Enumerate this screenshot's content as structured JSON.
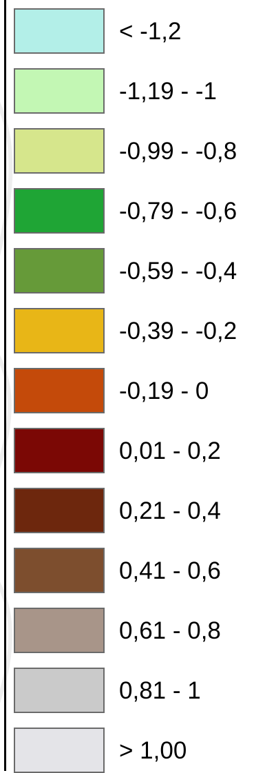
{
  "legend": {
    "items": [
      {
        "label": "< -1,2",
        "color": "#b3efe8"
      },
      {
        "label": "-1,19 - -1",
        "color": "#c3f7b4"
      },
      {
        "label": "-0,99 - -0,8",
        "color": "#d6e68c"
      },
      {
        "label": "-0,79 - -0,6",
        "color": "#1fa535"
      },
      {
        "label": "-0,59 - -0,4",
        "color": "#669a39"
      },
      {
        "label": "-0,39 - -0,2",
        "color": "#e8b617"
      },
      {
        "label": "-0,19 - 0",
        "color": "#c44a0a"
      },
      {
        "label": "0,01 - 0,2",
        "color": "#7b0805"
      },
      {
        "label": "0,21 - 0,4",
        "color": "#6d270d"
      },
      {
        "label": "0,41 - 0,6",
        "color": "#7d4e2e"
      },
      {
        "label": "0,61 - 0,8",
        "color": "#a89589"
      },
      {
        "label": "0,81 - 1",
        "color": "#cacaca"
      },
      {
        "label": "> 1,00",
        "color": "#e4e4e8"
      }
    ]
  }
}
